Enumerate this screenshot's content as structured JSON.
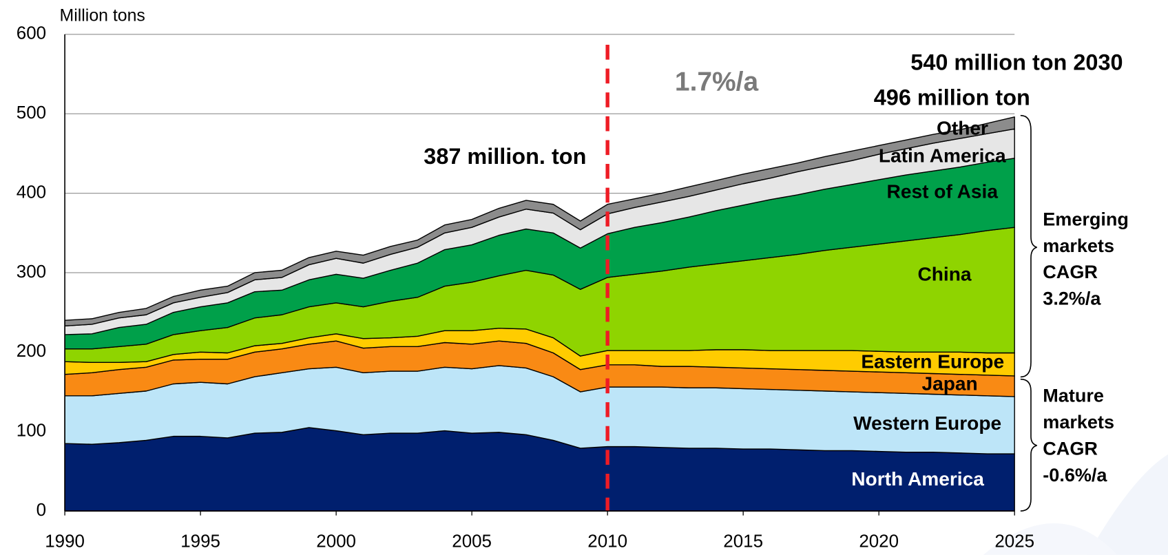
{
  "chart_data": {
    "type": "stacked-area",
    "y_axis_label": "Million tons",
    "x": [
      1990,
      1991,
      1992,
      1993,
      1994,
      1995,
      1996,
      1997,
      1998,
      1999,
      2000,
      2001,
      2002,
      2003,
      2004,
      2005,
      2006,
      2007,
      2008,
      2009,
      2010,
      2011,
      2012,
      2013,
      2014,
      2015,
      2016,
      2017,
      2018,
      2019,
      2020,
      2021,
      2022,
      2023,
      2024,
      2025
    ],
    "xlim": [
      1990,
      2025
    ],
    "xticks": [
      1990,
      1995,
      2000,
      2005,
      2010,
      2015,
      2020,
      2025
    ],
    "ylim": [
      0,
      600
    ],
    "yticks": [
      0,
      100,
      200,
      300,
      400,
      500,
      600
    ],
    "grid": true,
    "divider_x": 2010,
    "divider_color": "#ee1c25",
    "series": [
      {
        "name": "North America",
        "color": "#001f6e",
        "values": [
          85,
          84,
          86,
          89,
          94,
          94,
          92,
          98,
          99,
          105,
          101,
          96,
          98,
          98,
          101,
          98,
          99,
          96,
          89,
          79,
          81,
          81,
          80,
          79,
          79,
          78,
          78,
          77,
          76,
          76,
          75,
          74,
          74,
          73,
          72,
          72
        ]
      },
      {
        "name": "Western Europe",
        "color": "#bde5f8",
        "values": [
          60,
          61,
          62,
          62,
          66,
          68,
          68,
          71,
          75,
          74,
          80,
          78,
          78,
          78,
          80,
          81,
          84,
          84,
          80,
          71,
          75,
          75,
          76,
          76,
          76,
          76,
          75,
          75,
          75,
          74,
          74,
          74,
          73,
          73,
          73,
          72
        ]
      },
      {
        "name": "Japan",
        "color": "#f98a14",
        "values": [
          27,
          29,
          30,
          30,
          30,
          29,
          31,
          31,
          30,
          31,
          33,
          31,
          31,
          31,
          31,
          31,
          31,
          31,
          30,
          28,
          28,
          28,
          26,
          27,
          26,
          26,
          26,
          26,
          26,
          26,
          26,
          26,
          26,
          26,
          26,
          26
        ]
      },
      {
        "name": "Eastern Europe",
        "color": "#ffcc00",
        "values": [
          16,
          13,
          9,
          7,
          7,
          9,
          8,
          8,
          7,
          8,
          9,
          12,
          11,
          13,
          15,
          17,
          16,
          18,
          19,
          17,
          18,
          18,
          20,
          20,
          22,
          23,
          23,
          24,
          25,
          26,
          26,
          26,
          27,
          28,
          28,
          29
        ]
      },
      {
        "name": "China",
        "color": "#8fd400",
        "values": [
          16,
          17,
          20,
          22,
          25,
          27,
          32,
          35,
          36,
          39,
          39,
          40,
          46,
          49,
          56,
          61,
          66,
          74,
          79,
          84,
          92,
          96,
          100,
          105,
          108,
          112,
          117,
          121,
          126,
          130,
          135,
          140,
          144,
          148,
          154,
          158
        ]
      },
      {
        "name": "Rest of Asia",
        "color": "#00a04a",
        "values": [
          18,
          19,
          24,
          25,
          28,
          30,
          31,
          33,
          31,
          34,
          36,
          36,
          39,
          43,
          46,
          47,
          51,
          52,
          53,
          52,
          55,
          59,
          61,
          63,
          67,
          70,
          73,
          75,
          77,
          79,
          81,
          83,
          84,
          85,
          86,
          87
        ]
      },
      {
        "name": "Latin America",
        "color": "#e6e6e6",
        "values": [
          11,
          12,
          12,
          12,
          12,
          12,
          13,
          15,
          16,
          19,
          20,
          19,
          20,
          20,
          21,
          22,
          23,
          25,
          25,
          23,
          25,
          25,
          26,
          26,
          26,
          27,
          27,
          29,
          29,
          30,
          32,
          33,
          35,
          36,
          36,
          37
        ]
      },
      {
        "name": "Other",
        "color": "#8c8c8c",
        "values": [
          7,
          7,
          7,
          8,
          8,
          9,
          8,
          9,
          9,
          9,
          9,
          10,
          10,
          9,
          10,
          10,
          11,
          11,
          11,
          11,
          12,
          11,
          11,
          12,
          12,
          12,
          12,
          11,
          12,
          12,
          11,
          11,
          11,
          11,
          13,
          15
        ]
      }
    ],
    "annotations": {
      "forecast": "540 million ton 2030",
      "total_2025": "496 million ton",
      "growth": "1.7%/a",
      "total_2010": "387 million. ton"
    },
    "brackets": [
      {
        "lines": [
          "Emerging",
          "markets",
          "CAGR",
          "3.2%/a"
        ]
      },
      {
        "lines": [
          "Mature",
          "markets",
          "CAGR",
          "-0.6%/a"
        ]
      }
    ]
  }
}
